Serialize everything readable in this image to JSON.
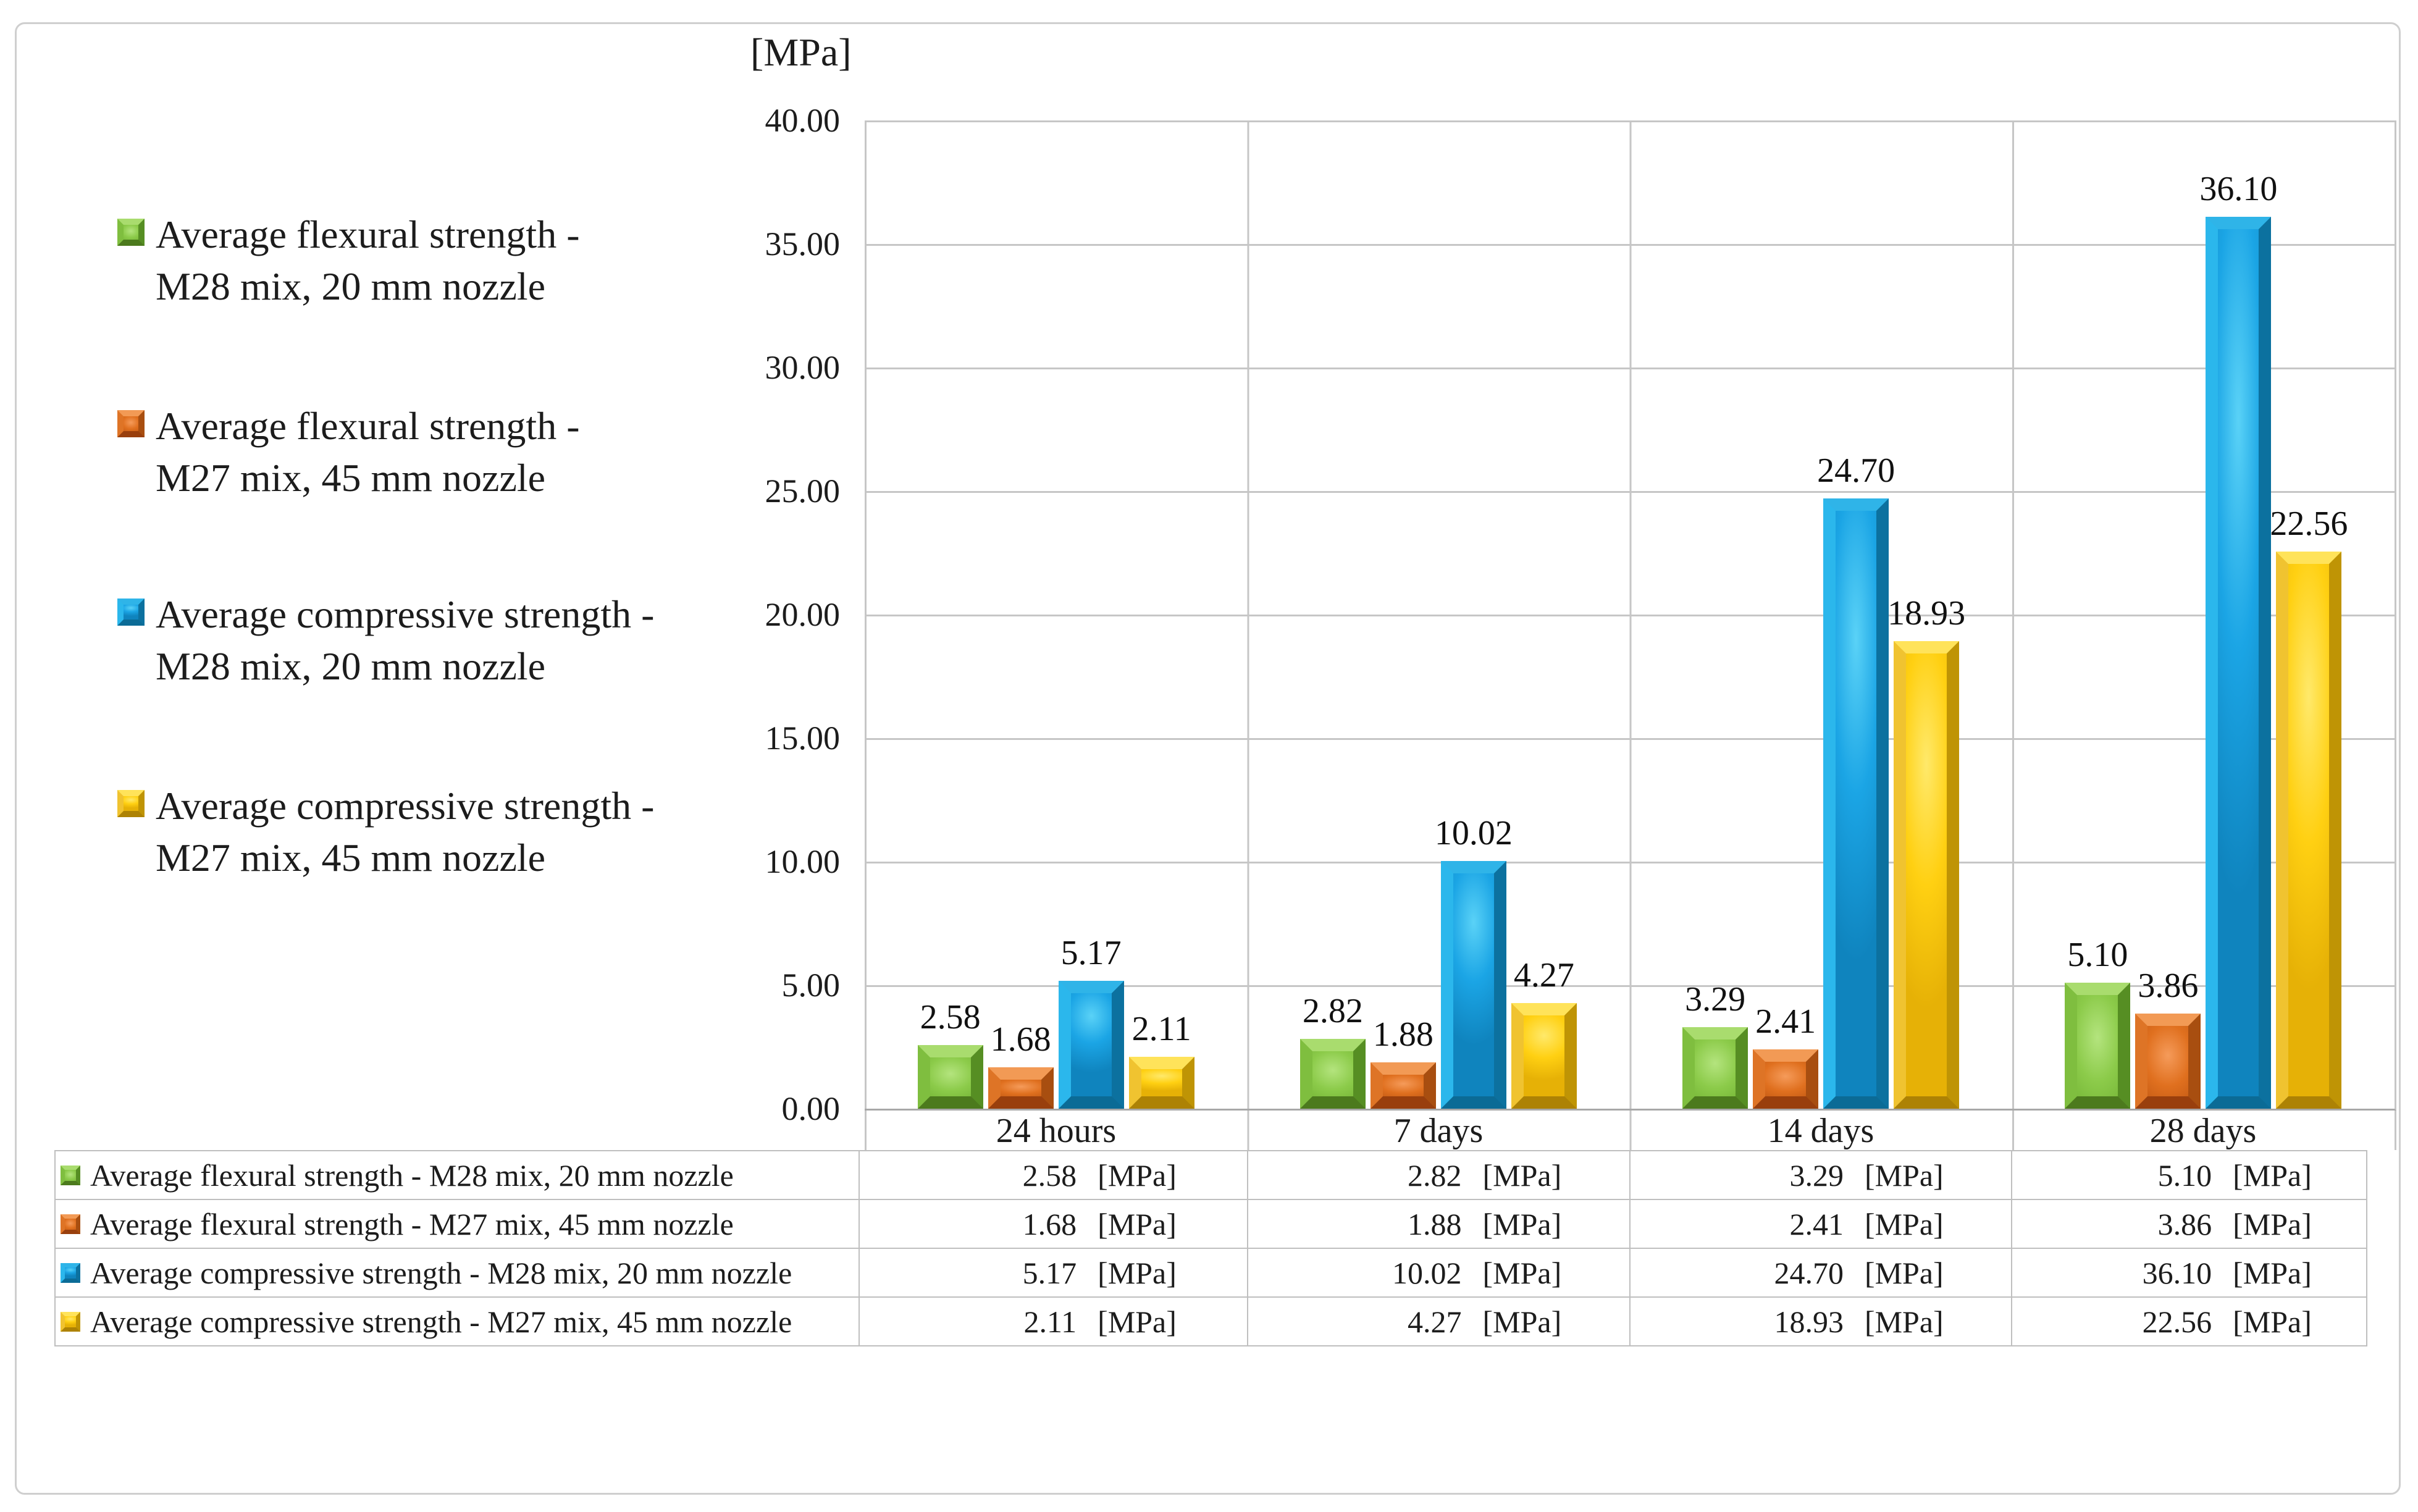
{
  "axis": {
    "title": "[MPa]",
    "ticks": [
      "40.00",
      "35.00",
      "30.00",
      "25.00",
      "20.00",
      "15.00",
      "10.00",
      "5.00",
      "0.00"
    ]
  },
  "legend": {
    "items": [
      {
        "line1": "Average flexural strength -",
        "line2": "M28 mix, 20 mm nozzle"
      },
      {
        "line1": "Average flexural strength -",
        "line2": "M27 mix, 45 mm nozzle"
      },
      {
        "line1": "Average compressive strength -",
        "line2": "M28 mix, 20 mm nozzle"
      },
      {
        "line1": "Average compressive strength -",
        "line2": "M27 mix, 45 mm nozzle"
      }
    ]
  },
  "table": {
    "unit": "[MPa]"
  },
  "chart_data": {
    "type": "bar",
    "categories": [
      "24 hours",
      "7 days",
      "14 days",
      "28 days"
    ],
    "series": [
      {
        "name": "Average flexural strength - M28 mix, 20 mm nozzle",
        "color": "#7fbe3f",
        "values": [
          2.58,
          2.82,
          3.29,
          5.1
        ]
      },
      {
        "name": "Average flexural strength - M27 mix, 45 mm nozzle",
        "color": "#de7426",
        "values": [
          1.68,
          1.88,
          2.41,
          3.86
        ]
      },
      {
        "name": "Average compressive strength - M28 mix, 20 mm nozzle",
        "color": "#1ba5e5",
        "values": [
          5.17,
          10.02,
          24.7,
          36.1
        ]
      },
      {
        "name": "Average compressive strength - M27 mix, 45 mm nozzle",
        "color": "#ffc807",
        "values": [
          2.11,
          4.27,
          18.93,
          22.56
        ]
      }
    ],
    "title": "",
    "xlabel": "",
    "ylabel": "[MPa]",
    "ylim": [
      0,
      40
    ],
    "ytick_step": 5,
    "grid": true,
    "value_labels": true,
    "legend_position": "left",
    "unit": "[MPa]",
    "data_table_shown": true
  }
}
